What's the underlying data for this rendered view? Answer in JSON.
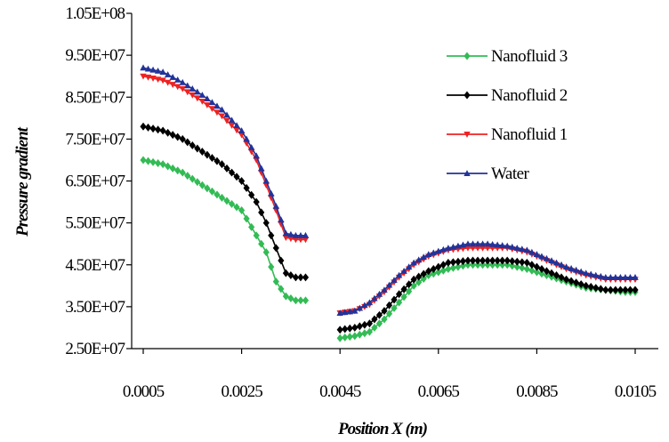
{
  "chart_data": {
    "type": "line",
    "xlabel": "Position X (m)",
    "ylabel": "Pressure gradient",
    "xlim": [
      0.0005,
      0.0105
    ],
    "ylim": [
      25000000,
      105000000
    ],
    "x_ticks": [
      "0.0005",
      "0.0025",
      "0.0045",
      "0.0065",
      "0.0085",
      "0.0105"
    ],
    "y_ticks": [
      "2.50E+07",
      "3.50E+07",
      "4.50E+07",
      "5.50E+07",
      "6.50E+07",
      "7.50E+07",
      "8.50E+07",
      "9.50E+07",
      "1.05E+08"
    ],
    "legend_position": "top-right",
    "series": [
      {
        "name": "Nanofluid 3",
        "color": "#33bb55",
        "marker": "diamond",
        "segments": [
          [
            [
              0.0005,
              70000000
            ],
            [
              0.0009,
              69000000
            ],
            [
              0.0013,
              67000000
            ],
            [
              0.0017,
              64000000
            ],
            [
              0.0021,
              61000000
            ],
            [
              0.0025,
              58000000
            ],
            [
              0.0028,
              52000000
            ],
            [
              0.003,
              48000000
            ],
            [
              0.0032,
              41000000
            ],
            [
              0.0034,
              37500000
            ],
            [
              0.0036,
              36500000
            ],
            [
              0.0038,
              36500000
            ]
          ],
          [
            [
              0.0045,
              27500000
            ],
            [
              0.0048,
              28000000
            ],
            [
              0.0051,
              29000000
            ],
            [
              0.0054,
              32000000
            ],
            [
              0.0057,
              36000000
            ],
            [
              0.006,
              40000000
            ],
            [
              0.0063,
              42500000
            ],
            [
              0.0067,
              44000000
            ],
            [
              0.0071,
              45000000
            ],
            [
              0.0075,
              45000000
            ],
            [
              0.0079,
              45000000
            ],
            [
              0.0083,
              44000000
            ],
            [
              0.0087,
              42500000
            ],
            [
              0.0091,
              41000000
            ],
            [
              0.0095,
              39500000
            ],
            [
              0.0099,
              39000000
            ],
            [
              0.0103,
              38500000
            ],
            [
              0.0105,
              38500000
            ]
          ]
        ]
      },
      {
        "name": "Nanofluid 2",
        "color": "#000000",
        "marker": "diamond",
        "segments": [
          [
            [
              0.0005,
              78000000
            ],
            [
              0.0009,
              77000000
            ],
            [
              0.0013,
              75000000
            ],
            [
              0.0017,
              72000000
            ],
            [
              0.0021,
              69000000
            ],
            [
              0.0025,
              65000000
            ],
            [
              0.0028,
              60000000
            ],
            [
              0.003,
              55000000
            ],
            [
              0.0032,
              49000000
            ],
            [
              0.0034,
              43000000
            ],
            [
              0.0036,
              42000000
            ],
            [
              0.0038,
              42000000
            ]
          ],
          [
            [
              0.0045,
              29500000
            ],
            [
              0.0048,
              30000000
            ],
            [
              0.0051,
              31000000
            ],
            [
              0.0054,
              34000000
            ],
            [
              0.0057,
              38000000
            ],
            [
              0.006,
              41500000
            ],
            [
              0.0063,
              43500000
            ],
            [
              0.0067,
              45500000
            ],
            [
              0.0071,
              46000000
            ],
            [
              0.0075,
              46000000
            ],
            [
              0.0079,
              46000000
            ],
            [
              0.0083,
              45500000
            ],
            [
              0.0087,
              43500000
            ],
            [
              0.0091,
              41500000
            ],
            [
              0.0095,
              40000000
            ],
            [
              0.0099,
              39000000
            ],
            [
              0.0103,
              39000000
            ],
            [
              0.0105,
              39000000
            ]
          ]
        ]
      },
      {
        "name": "Nanofluid 1",
        "color": "#ee2222",
        "marker": "triangle-down",
        "segments": [
          [
            [
              0.0005,
              90000000
            ],
            [
              0.0009,
              89000000
            ],
            [
              0.0013,
              87000000
            ],
            [
              0.0017,
              84000000
            ],
            [
              0.0021,
              80500000
            ],
            [
              0.0025,
              76000000
            ],
            [
              0.0028,
              70000000
            ],
            [
              0.003,
              64000000
            ],
            [
              0.0032,
              58000000
            ],
            [
              0.0034,
              51500000
            ],
            [
              0.0036,
              51000000
            ],
            [
              0.0038,
              51000000
            ]
          ],
          [
            [
              0.0045,
              33500000
            ],
            [
              0.0048,
              34000000
            ],
            [
              0.0051,
              35500000
            ],
            [
              0.0054,
              38500000
            ],
            [
              0.0057,
              42000000
            ],
            [
              0.006,
              45000000
            ],
            [
              0.0063,
              47000000
            ],
            [
              0.0067,
              48500000
            ],
            [
              0.0071,
              49000000
            ],
            [
              0.0075,
              49000000
            ],
            [
              0.0079,
              49000000
            ],
            [
              0.0083,
              48000000
            ],
            [
              0.0087,
              46000000
            ],
            [
              0.0091,
              44000000
            ],
            [
              0.0095,
              42500000
            ],
            [
              0.0099,
              41500000
            ],
            [
              0.0103,
              41500000
            ],
            [
              0.0105,
              41500000
            ]
          ]
        ]
      },
      {
        "name": "Water",
        "color": "#223399",
        "marker": "triangle-up",
        "segments": [
          [
            [
              0.0005,
              92000000
            ],
            [
              0.0009,
              91000000
            ],
            [
              0.0013,
              88500000
            ],
            [
              0.0017,
              85500000
            ],
            [
              0.0021,
              82000000
            ],
            [
              0.0025,
              77000000
            ],
            [
              0.0028,
              71000000
            ],
            [
              0.003,
              65000000
            ],
            [
              0.0032,
              59000000
            ],
            [
              0.0034,
              52500000
            ],
            [
              0.0036,
              52000000
            ],
            [
              0.0038,
              52000000
            ]
          ],
          [
            [
              0.0045,
              33500000
            ],
            [
              0.0048,
              34000000
            ],
            [
              0.0051,
              36000000
            ],
            [
              0.0054,
              39000000
            ],
            [
              0.0057,
              42500000
            ],
            [
              0.006,
              45500000
            ],
            [
              0.0063,
              47500000
            ],
            [
              0.0067,
              49000000
            ],
            [
              0.0071,
              50000000
            ],
            [
              0.0075,
              50000000
            ],
            [
              0.0079,
              49500000
            ],
            [
              0.0083,
              48500000
            ],
            [
              0.0087,
              46500000
            ],
            [
              0.0091,
              44500000
            ],
            [
              0.0095,
              43000000
            ],
            [
              0.0099,
              42000000
            ],
            [
              0.0103,
              42000000
            ],
            [
              0.0105,
              42000000
            ]
          ]
        ]
      }
    ],
    "legend_order": [
      "Nanofluid 3",
      "Nanofluid 2",
      "Nanofluid 1",
      "Water"
    ]
  }
}
